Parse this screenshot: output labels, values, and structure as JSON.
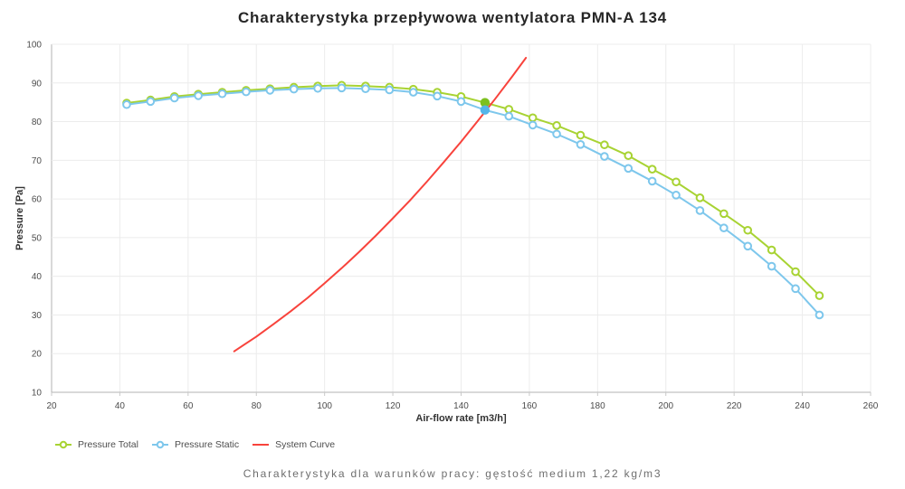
{
  "chart_data": {
    "type": "line",
    "title": "Charakterystyka przepływowa wentylatora PMN-A 134",
    "xlabel": "Air-flow rate [m3/h]",
    "ylabel": "Pressure [Pa]",
    "xlim": [
      20,
      260
    ],
    "ylim": [
      10,
      100
    ],
    "x_ticks": [
      20,
      40,
      60,
      80,
      100,
      120,
      140,
      160,
      180,
      200,
      220,
      240,
      260
    ],
    "y_ticks": [
      10,
      20,
      30,
      40,
      50,
      60,
      70,
      80,
      90,
      100
    ],
    "grid": true,
    "legend_position": "bottom-left",
    "colors": {
      "grid": "#ececec",
      "axis": "#b3b3b3",
      "tick_label": "#4c4c4c",
      "axis_title": "#333333"
    },
    "series": [
      {
        "name": "Pressure Total",
        "color": "#a8d333",
        "marker": "open-circle",
        "x": [
          42,
          49,
          56,
          63,
          70,
          77,
          84,
          91,
          98,
          105,
          112,
          119,
          126,
          133,
          140,
          147,
          154,
          161,
          168,
          175,
          182,
          189,
          196,
          203,
          210,
          217,
          224,
          231,
          238,
          245
        ],
        "values": [
          84.8,
          85.6,
          86.5,
          87.1,
          87.6,
          88.1,
          88.5,
          88.9,
          89.2,
          89.4,
          89.2,
          88.9,
          88.4,
          87.6,
          86.5,
          84.9,
          83.2,
          81.0,
          79.0,
          76.5,
          74.0,
          71.2,
          67.7,
          64.4,
          60.3,
          56.2,
          51.9,
          46.8,
          41.2,
          35.0
        ]
      },
      {
        "name": "Pressure Static",
        "color": "#7ec7ec",
        "marker": "open-circle",
        "x": [
          42,
          49,
          56,
          63,
          70,
          77,
          84,
          91,
          98,
          105,
          112,
          119,
          126,
          133,
          140,
          147,
          154,
          161,
          168,
          175,
          182,
          189,
          196,
          203,
          210,
          217,
          224,
          231,
          238,
          245
        ],
        "values": [
          84.4,
          85.2,
          86.1,
          86.7,
          87.2,
          87.7,
          88.1,
          88.4,
          88.6,
          88.7,
          88.5,
          88.2,
          87.6,
          86.6,
          85.2,
          83.0,
          81.4,
          79.1,
          76.8,
          74.1,
          71.0,
          67.9,
          64.6,
          61.0,
          57.0,
          52.5,
          47.8,
          42.6,
          36.8,
          30.0
        ]
      },
      {
        "name": "System Curve",
        "color": "#f8433c",
        "marker": "none",
        "x": [
          73.5,
          80,
          85,
          90,
          95,
          100,
          105,
          110,
          115,
          120,
          125,
          130,
          135,
          140,
          145,
          150,
          155,
          159
        ],
        "values": [
          20.6,
          24.4,
          27.6,
          30.9,
          34.4,
          38.2,
          42.1,
          46.2,
          50.5,
          55.0,
          59.6,
          64.5,
          69.6,
          74.8,
          80.3,
          85.9,
          91.7,
          96.5
        ]
      }
    ],
    "operating_points": [
      {
        "series": "Pressure Total",
        "x": 147,
        "value": 84.9,
        "color": "#7dc01f"
      },
      {
        "series": "Pressure Static",
        "x": 147,
        "value": 83.0,
        "color": "#54b5e9"
      }
    ]
  },
  "caption": "Charakterystyka dla warunków pracy: gęstość medium 1,22 kg/m3"
}
